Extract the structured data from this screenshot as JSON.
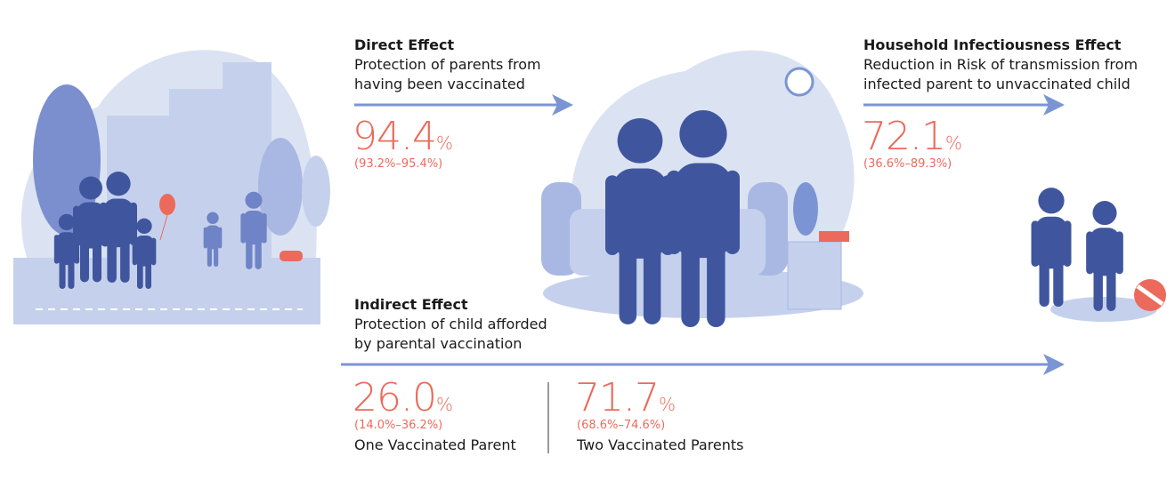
{
  "direct_effect": {
    "title": "Direct Effect",
    "description_lines": [
      "Protection of parents from",
      "having been vaccinated"
    ],
    "estimate": {
      "value": "94.4",
      "unit": "%"
    },
    "interval": "(93.2%–95.4%)"
  },
  "household_effect": {
    "title": "Household Infectiousness Effect",
    "description_lines": [
      "Reduction in Risk of transmission from",
      "infected parent to unvaccinated child"
    ],
    "estimate": {
      "value": "72.1",
      "unit": "%"
    },
    "interval": "(36.6%–89.3%)"
  },
  "indirect_effect": {
    "title": "Indirect Effect",
    "description_lines": [
      "Protection of child afforded",
      "by parental vaccination"
    ],
    "results": [
      {
        "value": "26.0",
        "unit": "%",
        "interval": "(14.0%–36.2%)",
        "label": "One Vaccinated Parent"
      },
      {
        "value": "71.7",
        "unit": "%",
        "interval": "(68.6%–74.6%)",
        "label": "Two Vaccinated Parents"
      }
    ]
  }
}
